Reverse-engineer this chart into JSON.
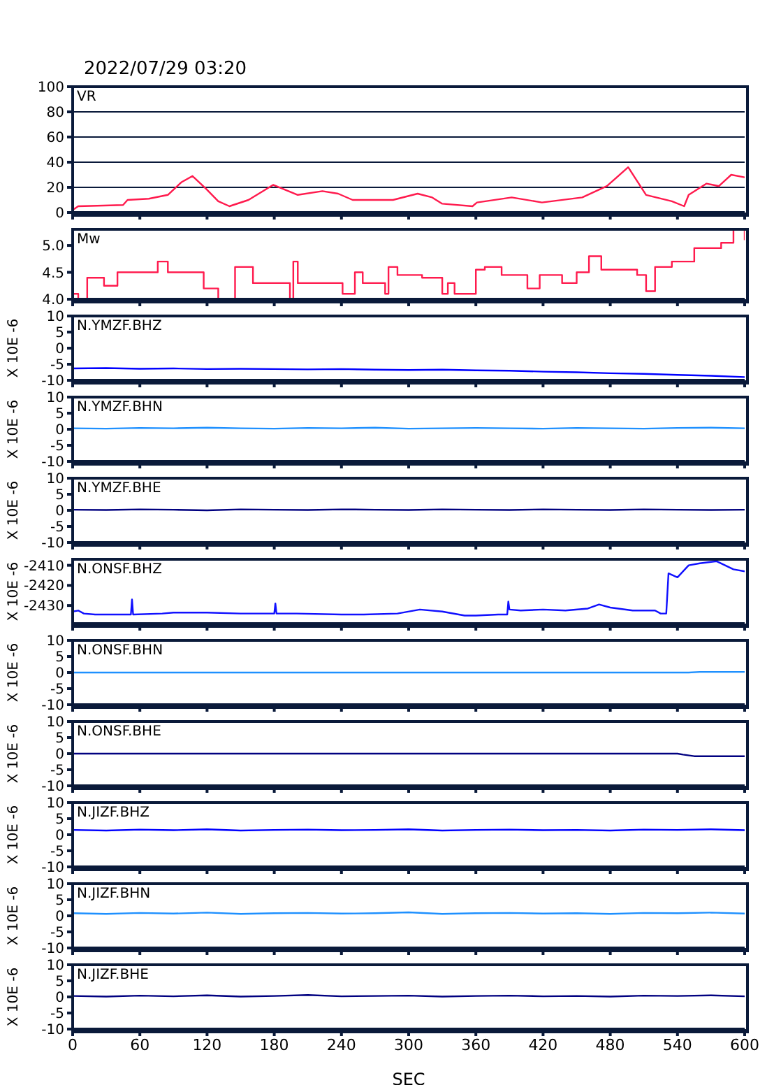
{
  "chart_data": [
    {
      "type": "line",
      "title": "2022/07/29 03:20",
      "annotations": [
        "VR"
      ],
      "color": "#ff1a4d",
      "xlim": [
        0,
        600
      ],
      "xticks": [
        0,
        60,
        120,
        180,
        240,
        300,
        360,
        420,
        480,
        540,
        600
      ],
      "ylim": [
        0,
        100
      ],
      "yticks": [
        0,
        20,
        40,
        60,
        80,
        100
      ],
      "grid": "y",
      "tick_labels": "y",
      "x": [
        0,
        5,
        45,
        49,
        68,
        85,
        97,
        107,
        119,
        130,
        140,
        157,
        179,
        201,
        223,
        237,
        250,
        286,
        308,
        321,
        330,
        357,
        361,
        392,
        419,
        455,
        477,
        496,
        512,
        535,
        546,
        550,
        566,
        577,
        588,
        600
      ],
      "values": [
        2,
        5,
        6,
        10,
        11,
        14,
        24,
        29,
        19,
        9,
        5,
        10,
        22,
        14,
        17,
        15,
        10,
        10,
        15,
        12,
        7,
        5,
        8,
        12,
        8,
        12,
        21,
        36,
        14,
        9,
        5,
        14,
        23,
        21,
        30,
        28
      ]
    },
    {
      "type": "step",
      "annotations": [
        "Mw"
      ],
      "color": "#ff1a4d",
      "xlim": [
        0,
        600
      ],
      "xticks": [
        0,
        60,
        120,
        180,
        240,
        300,
        360,
        420,
        480,
        540,
        600
      ],
      "ylim": [
        4.0,
        5.3
      ],
      "yticks": [
        {
          "value": 4.0,
          "label": "4.0"
        },
        {
          "value": 4.5,
          "label": "4.5"
        },
        {
          "value": 5.0,
          "label": "5.0"
        }
      ],
      "tick_labels": "y",
      "x": [
        0,
        5,
        13,
        28,
        40,
        68,
        76,
        85,
        103,
        117,
        130,
        145,
        161,
        188,
        194,
        197,
        201,
        223,
        241,
        252,
        259,
        279,
        282,
        290,
        312,
        330,
        335,
        341,
        357,
        360,
        368,
        383,
        406,
        417,
        437,
        450,
        461,
        472,
        504,
        512,
        520,
        535,
        555,
        579,
        590,
        600
      ],
      "values": [
        4.1,
        4.0,
        4.4,
        4.25,
        4.5,
        4.5,
        4.7,
        4.5,
        4.5,
        4.2,
        4.0,
        4.6,
        4.3,
        4.3,
        4.0,
        4.7,
        4.3,
        4.3,
        4.1,
        4.5,
        4.3,
        4.1,
        4.6,
        4.45,
        4.4,
        4.1,
        4.3,
        4.1,
        4.1,
        4.55,
        4.6,
        4.45,
        4.2,
        4.45,
        4.3,
        4.5,
        4.8,
        4.55,
        4.45,
        4.15,
        4.6,
        4.7,
        4.95,
        5.05,
        5.3,
        5.1
      ]
    },
    {
      "type": "line",
      "annotations": [
        "N.YMZF.BHZ"
      ],
      "ylabel": "X 10E -6",
      "color": "#0000ff",
      "xlim": [
        0,
        600
      ],
      "xticks": [
        0,
        60,
        120,
        180,
        240,
        300,
        360,
        420,
        480,
        540,
        600
      ],
      "ylim": [
        -10,
        10
      ],
      "yticks": [
        -10,
        -5,
        0,
        5,
        10
      ],
      "tick_labels": "y",
      "x": [
        0,
        30,
        60,
        90,
        120,
        150,
        180,
        210,
        240,
        270,
        300,
        330,
        360,
        390,
        420,
        450,
        480,
        510,
        540,
        570,
        600
      ],
      "values": [
        -6.3,
        -6.2,
        -6.4,
        -6.3,
        -6.5,
        -6.4,
        -6.5,
        -6.6,
        -6.5,
        -6.7,
        -6.8,
        -6.7,
        -6.9,
        -7.0,
        -7.3,
        -7.5,
        -7.8,
        -8.0,
        -8.3,
        -8.6,
        -9.0
      ]
    },
    {
      "type": "line",
      "annotations": [
        "N.YMZF.BHN"
      ],
      "ylabel": "X 10E -6",
      "color": "#1e90ff",
      "xlim": [
        0,
        600
      ],
      "xticks": [
        0,
        60,
        120,
        180,
        240,
        300,
        360,
        420,
        480,
        540,
        600
      ],
      "ylim": [
        -10,
        10
      ],
      "yticks": [
        -10,
        -5,
        0,
        5,
        10
      ],
      "tick_labels": "y",
      "x": [
        0,
        30,
        60,
        90,
        120,
        150,
        180,
        210,
        240,
        270,
        300,
        330,
        360,
        390,
        420,
        450,
        480,
        510,
        540,
        570,
        600
      ],
      "values": [
        0.3,
        0.2,
        0.4,
        0.3,
        0.5,
        0.3,
        0.2,
        0.4,
        0.3,
        0.5,
        0.2,
        0.3,
        0.4,
        0.3,
        0.2,
        0.4,
        0.3,
        0.2,
        0.4,
        0.5,
        0.3
      ]
    },
    {
      "type": "line",
      "annotations": [
        "N.YMZF.BHE"
      ],
      "ylabel": "X 10E -6",
      "color": "#000080",
      "xlim": [
        0,
        600
      ],
      "xticks": [
        0,
        60,
        120,
        180,
        240,
        300,
        360,
        420,
        480,
        540,
        600
      ],
      "ylim": [
        -10,
        10
      ],
      "yticks": [
        -10,
        -5,
        0,
        5,
        10
      ],
      "tick_labels": "y",
      "x": [
        0,
        30,
        60,
        90,
        120,
        150,
        180,
        210,
        240,
        270,
        300,
        330,
        360,
        390,
        420,
        450,
        480,
        510,
        540,
        570,
        600
      ],
      "values": [
        0.2,
        0.1,
        0.3,
        0.2,
        0,
        0.3,
        0.2,
        0.1,
        0.3,
        0.2,
        0.1,
        0.3,
        0.2,
        0.1,
        0.3,
        0.2,
        0.1,
        0.3,
        0.2,
        0.1,
        0.2
      ]
    },
    {
      "type": "line",
      "annotations": [
        "N.ONSF.BHZ"
      ],
      "ylabel": "X 10E -6",
      "color": "#1010ff",
      "xlim": [
        0,
        600
      ],
      "xticks": [
        0,
        60,
        120,
        180,
        240,
        300,
        360,
        420,
        480,
        540,
        600
      ],
      "ylim": [
        -2439,
        -2407
      ],
      "yticks": [
        -2430,
        -2420,
        -2410
      ],
      "tick_labels": "y",
      "x": [
        0,
        5,
        10,
        20,
        30,
        52,
        53,
        54,
        80,
        90,
        120,
        150,
        180,
        181,
        182,
        200,
        240,
        260,
        290,
        310,
        330,
        350,
        360,
        380,
        388,
        389,
        390,
        400,
        420,
        440,
        460,
        470,
        480,
        500,
        520,
        525,
        530,
        532,
        540,
        550,
        560,
        575,
        590,
        600
      ],
      "values": [
        -2433,
        -2432.5,
        -2434,
        -2434.5,
        -2434.5,
        -2434.5,
        -2427,
        -2434.5,
        -2434,
        -2433.5,
        -2433.5,
        -2434,
        -2434,
        -2429,
        -2434,
        -2434,
        -2434.5,
        -2434.5,
        -2434,
        -2432,
        -2433,
        -2435,
        -2435,
        -2434.5,
        -2434.5,
        -2428,
        -2432,
        -2432.5,
        -2432,
        -2432.5,
        -2431.5,
        -2429.5,
        -2431,
        -2432.5,
        -2432.5,
        -2434,
        -2434,
        -2414,
        -2416,
        -2410,
        -2409,
        -2408,
        -2412,
        -2413
      ]
    },
    {
      "type": "line",
      "annotations": [
        "N.ONSF.BHN"
      ],
      "ylabel": "X 10E -6",
      "color": "#1e90ff",
      "xlim": [
        0,
        600
      ],
      "xticks": [
        0,
        60,
        120,
        180,
        240,
        300,
        360,
        420,
        480,
        540,
        600
      ],
      "ylim": [
        -10,
        10
      ],
      "yticks": [
        -10,
        -5,
        0,
        5,
        10
      ],
      "tick_labels": "y",
      "x": [
        0,
        550,
        560,
        600
      ],
      "values": [
        0,
        0,
        0.2,
        0.2
      ]
    },
    {
      "type": "line",
      "annotations": [
        "N.ONSF.BHE"
      ],
      "ylabel": "X 10E -6",
      "color": "#000080",
      "xlim": [
        0,
        600
      ],
      "xticks": [
        0,
        60,
        120,
        180,
        240,
        300,
        360,
        420,
        480,
        540,
        600
      ],
      "ylim": [
        -10,
        10
      ],
      "yticks": [
        -10,
        -5,
        0,
        5,
        10
      ],
      "tick_labels": "y",
      "x": [
        0,
        540,
        545,
        555,
        600
      ],
      "values": [
        0,
        0,
        -0.3,
        -0.8,
        -0.8
      ]
    },
    {
      "type": "line",
      "annotations": [
        "N.JIZF.BHZ"
      ],
      "ylabel": "X 10E -6",
      "color": "#0000ff",
      "xlim": [
        0,
        600
      ],
      "xticks": [
        0,
        60,
        120,
        180,
        240,
        300,
        360,
        420,
        480,
        540,
        600
      ],
      "ylim": [
        -10,
        10
      ],
      "yticks": [
        -10,
        -5,
        0,
        5,
        10
      ],
      "tick_labels": "y",
      "x": [
        0,
        30,
        60,
        90,
        120,
        150,
        180,
        210,
        240,
        270,
        300,
        330,
        360,
        390,
        420,
        450,
        480,
        510,
        540,
        570,
        600
      ],
      "values": [
        1.5,
        1.3,
        1.6,
        1.4,
        1.7,
        1.3,
        1.5,
        1.6,
        1.4,
        1.5,
        1.7,
        1.3,
        1.5,
        1.6,
        1.4,
        1.5,
        1.3,
        1.6,
        1.5,
        1.7,
        1.4
      ]
    },
    {
      "type": "line",
      "annotations": [
        "N.JIZF.BHN"
      ],
      "ylabel": "X 10E -6",
      "color": "#1e90ff",
      "xlim": [
        0,
        600
      ],
      "xticks": [
        0,
        60,
        120,
        180,
        240,
        300,
        360,
        420,
        480,
        540,
        600
      ],
      "ylim": [
        -10,
        10
      ],
      "yticks": [
        -10,
        -5,
        0,
        5,
        10
      ],
      "tick_labels": "y",
      "x": [
        0,
        30,
        60,
        90,
        120,
        150,
        180,
        210,
        240,
        270,
        300,
        330,
        360,
        390,
        420,
        450,
        480,
        510,
        540,
        570,
        600
      ],
      "values": [
        0.8,
        0.6,
        0.9,
        0.7,
        1.0,
        0.6,
        0.8,
        0.9,
        0.7,
        0.8,
        1.1,
        0.6,
        0.8,
        0.9,
        0.7,
        0.8,
        0.6,
        0.9,
        0.8,
        1.0,
        0.7
      ]
    },
    {
      "type": "line",
      "annotations": [
        "N.JIZF.BHE"
      ],
      "ylabel": "X 10E -6",
      "xlabel": "SEC",
      "color": "#000080",
      "xlim": [
        0,
        600
      ],
      "xticks": [
        0,
        60,
        120,
        180,
        240,
        300,
        360,
        420,
        480,
        540,
        600
      ],
      "ylim": [
        -10,
        10
      ],
      "yticks": [
        -10,
        -5,
        0,
        5,
        10
      ],
      "x": [
        0,
        30,
        60,
        90,
        120,
        150,
        180,
        210,
        240,
        270,
        300,
        330,
        360,
        390,
        420,
        450,
        480,
        510,
        540,
        570,
        600
      ],
      "values": [
        0.3,
        0.1,
        0.4,
        0.2,
        0.5,
        0.1,
        0.3,
        0.6,
        0.2,
        0.3,
        0.4,
        0.1,
        0.3,
        0.4,
        0.2,
        0.3,
        0.1,
        0.4,
        0.3,
        0.5,
        0.2
      ]
    }
  ]
}
